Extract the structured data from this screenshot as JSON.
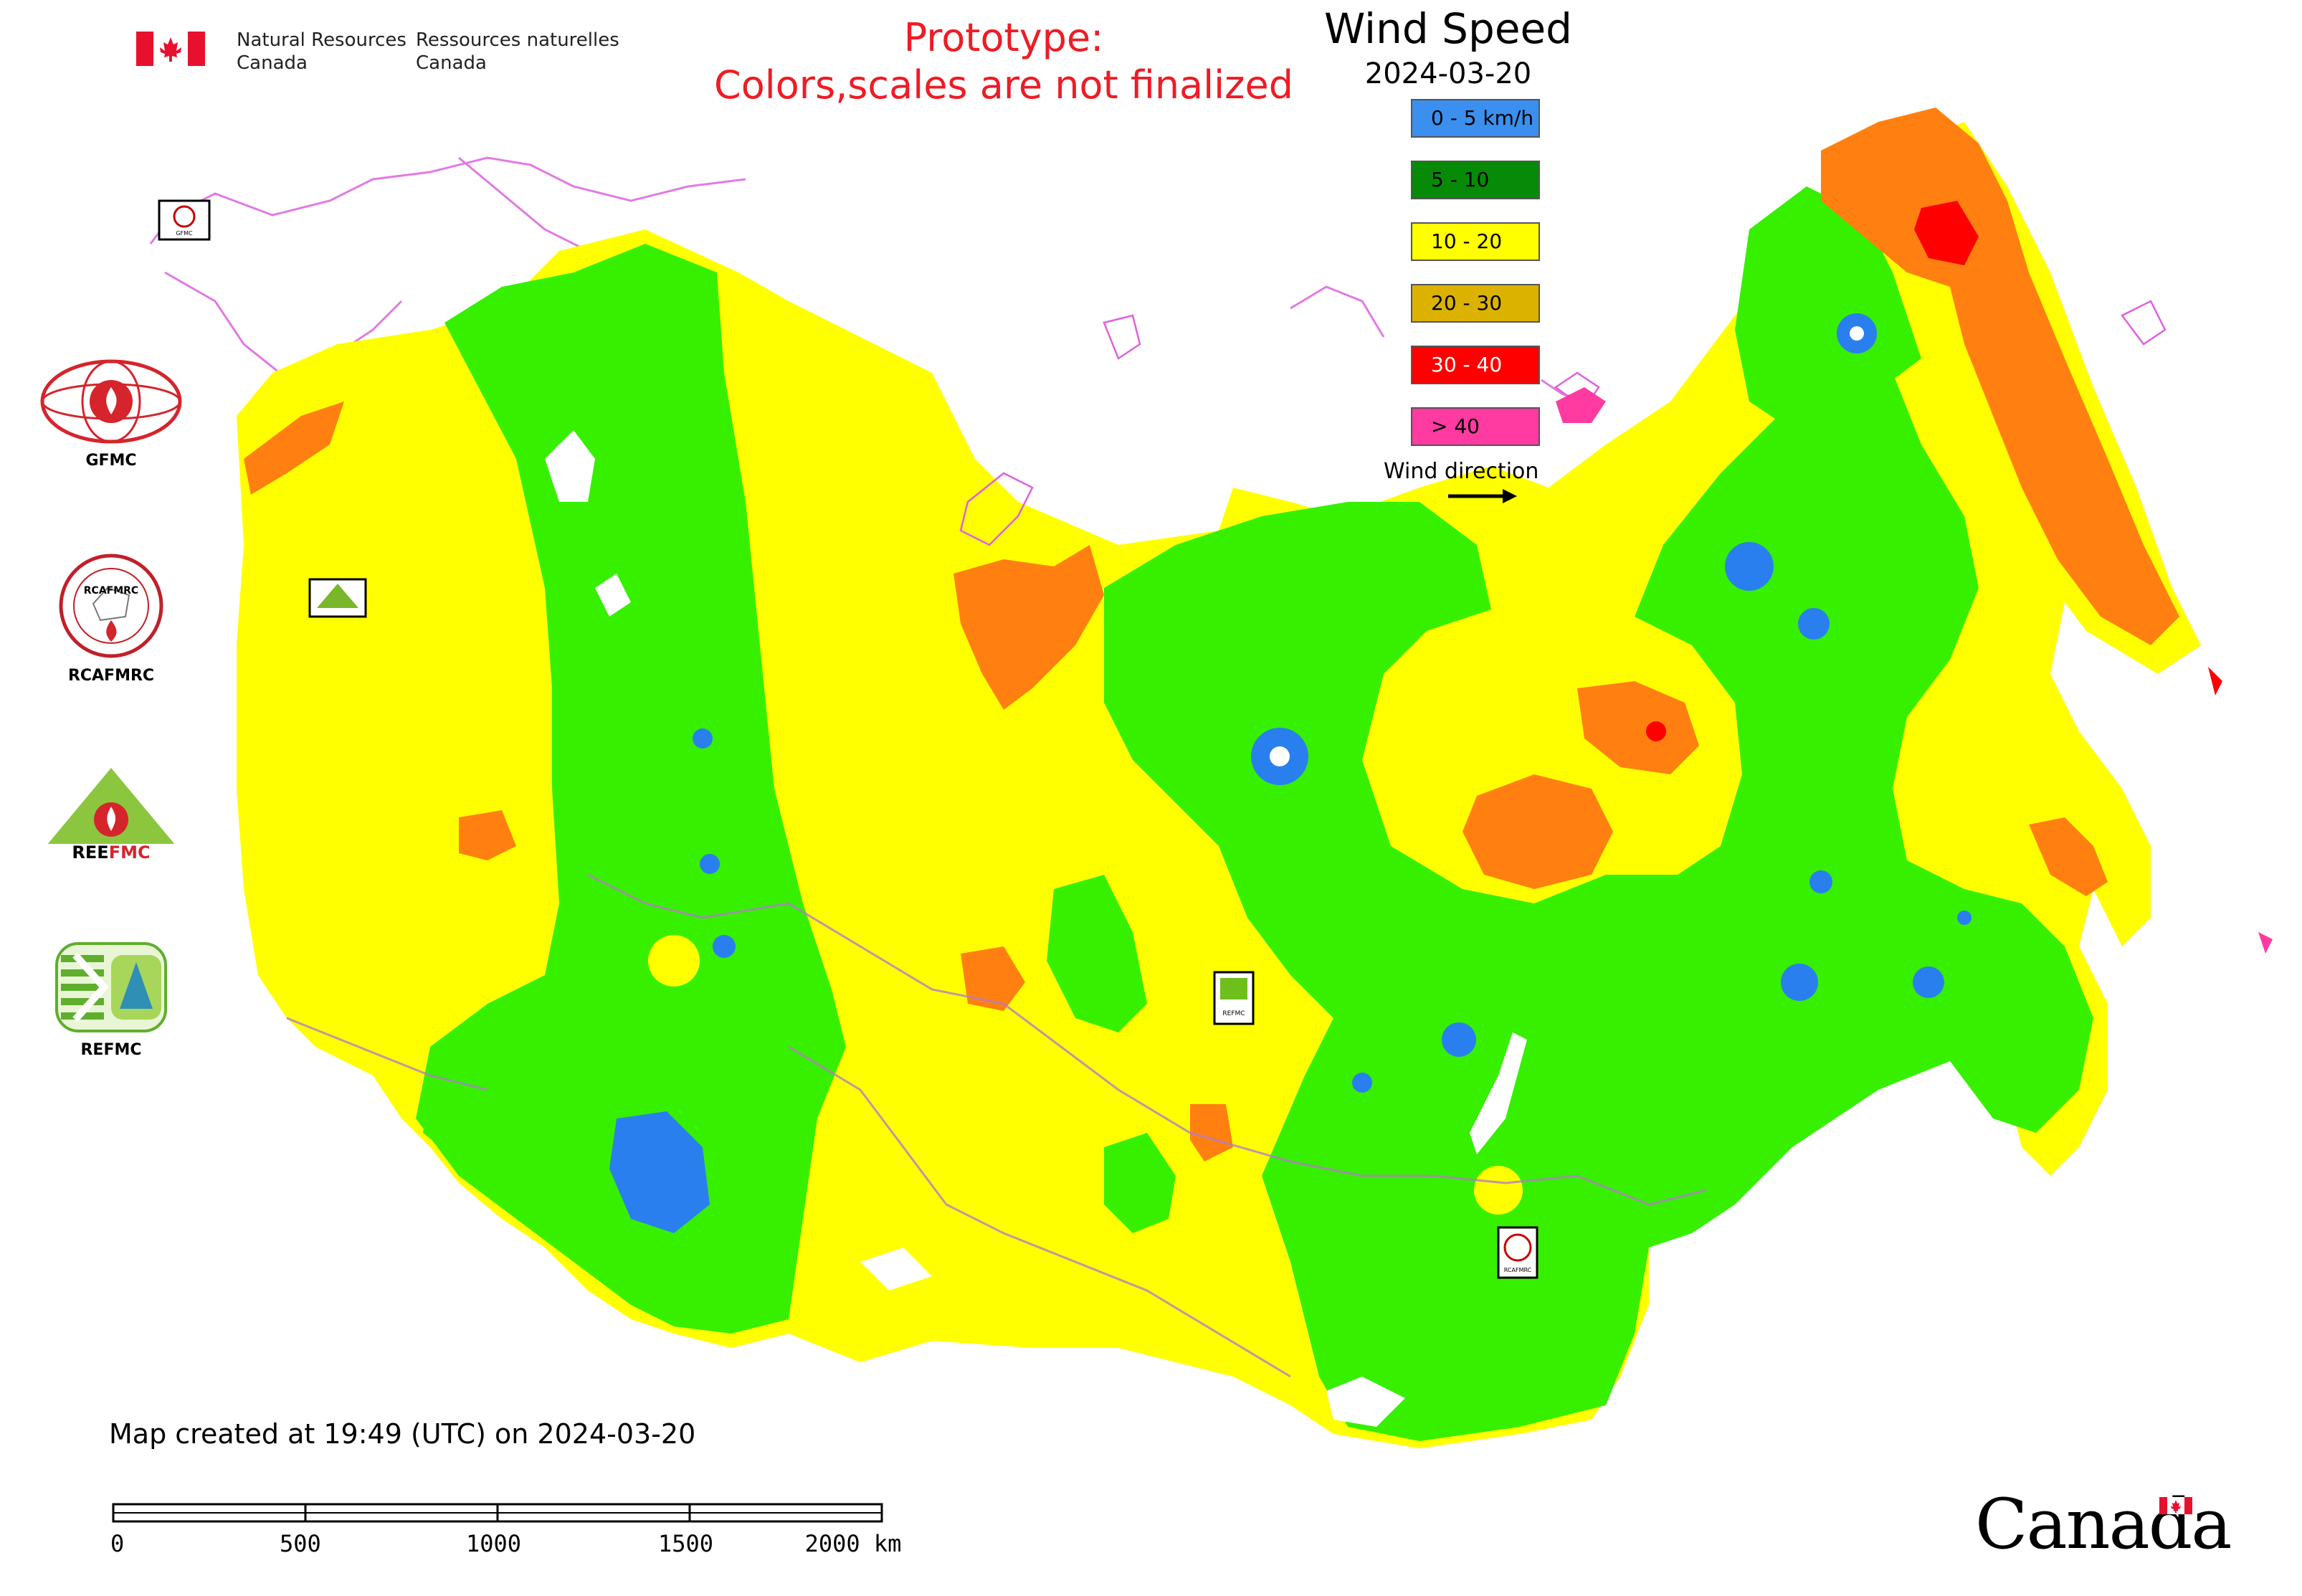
{
  "header": {
    "agency_en_line1": "Natural Resources",
    "agency_en_line2": "Canada",
    "agency_fr_line1": "Ressources naturelles",
    "agency_fr_line2": "Canada",
    "prototype_line1": "Prototype:",
    "prototype_line2": "Colors,scales are not finalized"
  },
  "legend": {
    "title": "Wind Speed",
    "date": "2024-03-20",
    "items": [
      {
        "label": "0 - 5 km/h",
        "color": "#3a8fef"
      },
      {
        "label": "5 - 10",
        "color": "#078a07"
      },
      {
        "label": "10 - 20",
        "color": "#ffff00"
      },
      {
        "label": "20 - 30",
        "color": "#dcb200"
      },
      {
        "label": "30 - 40",
        "color": "#ff0000"
      },
      {
        "label": "> 40",
        "color": "#ff3aa0"
      }
    ],
    "wind_direction_label": "Wind direction"
  },
  "logos": [
    {
      "caption": "GFMC"
    },
    {
      "caption": "RCAFMRC"
    },
    {
      "caption": "REEFMC"
    },
    {
      "caption": "REFMC"
    }
  ],
  "map_colors": {
    "yellow": "#ffff00",
    "green": "#36f000",
    "orange": "#ff8010",
    "red": "#ff0000",
    "blue": "#2a7fef",
    "border": "#e060e0"
  },
  "footer": {
    "created": "Map created at 19:49 (UTC) on 2024-03-20",
    "scale_ticks": [
      "0",
      "500",
      "1000",
      "1500",
      "2000 km"
    ],
    "wordmark": "Canada"
  }
}
